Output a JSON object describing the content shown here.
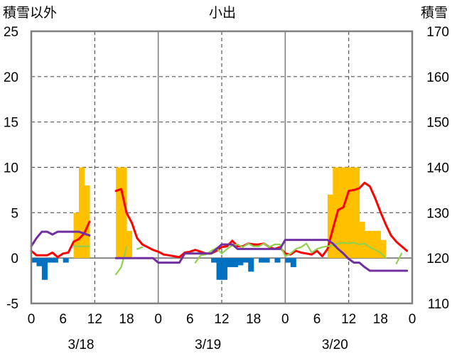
{
  "chart_data": {
    "type": "bar+line",
    "title": "小出",
    "y_left_label": "積雪以外",
    "y_right_label": "積雪",
    "y_left": {
      "min": -5,
      "max": 25,
      "step": 5,
      "ticks": [
        "-5",
        "0",
        "5",
        "10",
        "15",
        "20",
        "25"
      ]
    },
    "y_right": {
      "min": 110,
      "max": 170,
      "ticks": [
        "110",
        "120",
        "130",
        "140",
        "150",
        "160",
        "170"
      ]
    },
    "x": {
      "min": 0,
      "max": 72,
      "tick_hours": [
        0,
        6,
        12,
        18,
        24,
        30,
        36,
        42,
        48,
        54,
        60,
        66,
        72
      ],
      "tick_labels": [
        "0",
        "6",
        "12",
        "18",
        "0",
        "6",
        "12",
        "18",
        "0",
        "6",
        "12",
        "18",
        "0"
      ]
    },
    "dates": [
      {
        "label": "3/18",
        "center_hour": 9
      },
      {
        "label": "3/19",
        "center_hour": 33
      },
      {
        "label": "3/20",
        "center_hour": 57
      }
    ],
    "grid": {
      "horizontal": "dashed",
      "vertical_major_hours": [
        24,
        48
      ],
      "vertical_dashed_hours": [
        12,
        36,
        60
      ]
    },
    "colors": {
      "precip": "#FFC000",
      "temp_neg": "#0070C0",
      "red": "#FF0000",
      "green": "#92D050",
      "purple": "#7030A0",
      "frame": "#808080"
    },
    "precip_bars": [
      {
        "hour": 8,
        "value": 5
      },
      {
        "hour": 9,
        "value": 10
      },
      {
        "hour": 10,
        "value": 8
      },
      {
        "hour": 16,
        "value": 10
      },
      {
        "hour": 17,
        "value": 10
      },
      {
        "hour": 18,
        "value": 3
      },
      {
        "hour": 56,
        "value": 7
      },
      {
        "hour": 57,
        "value": 10
      },
      {
        "hour": 58,
        "value": 10
      },
      {
        "hour": 59,
        "value": 10
      },
      {
        "hour": 60,
        "value": 10
      },
      {
        "hour": 61,
        "value": 10
      },
      {
        "hour": 62,
        "value": 4
      },
      {
        "hour": 63,
        "value": 3
      },
      {
        "hour": 64,
        "value": 3
      },
      {
        "hour": 65,
        "value": 3
      },
      {
        "hour": 66,
        "value": 2
      }
    ],
    "negative_bars": [
      {
        "hour": 0,
        "value": -0.5
      },
      {
        "hour": 1,
        "value": -0.9
      },
      {
        "hour": 2,
        "value": -2.4
      },
      {
        "hour": 3,
        "value": -0.5
      },
      {
        "hour": 4,
        "value": -0.5
      },
      {
        "hour": 6,
        "value": -0.5
      },
      {
        "hour": 34,
        "value": -0.5
      },
      {
        "hour": 35,
        "value": -2.4
      },
      {
        "hour": 36,
        "value": -2.4
      },
      {
        "hour": 37,
        "value": -1
      },
      {
        "hour": 38,
        "value": -1
      },
      {
        "hour": 39,
        "value": -0.8
      },
      {
        "hour": 40,
        "value": -0.5
      },
      {
        "hour": 41,
        "value": -1.5
      },
      {
        "hour": 43,
        "value": -0.5
      },
      {
        "hour": 44,
        "value": -0.5
      },
      {
        "hour": 46,
        "value": -0.5
      },
      {
        "hour": 48,
        "value": -0.5
      },
      {
        "hour": 49,
        "value": -1
      }
    ],
    "series": [
      {
        "color": "#FF0000",
        "axis": "left",
        "segments": [
          [
            [
              0,
              0.8
            ],
            [
              1,
              0.3
            ],
            [
              2,
              0.3
            ],
            [
              3,
              0.3
            ],
            [
              4,
              0.6
            ],
            [
              5,
              0.1
            ],
            [
              6,
              0.5
            ],
            [
              7,
              0.6
            ],
            [
              8,
              1.8
            ],
            [
              9,
              2.1
            ],
            [
              10,
              2.7
            ],
            [
              11,
              4.0
            ]
          ],
          [
            [
              16,
              7.4
            ],
            [
              17,
              7.6
            ],
            [
              18,
              5.0
            ],
            [
              19,
              3.9
            ],
            [
              20,
              2.2
            ],
            [
              21,
              1.5
            ],
            [
              22,
              1.2
            ],
            [
              23,
              0.9
            ],
            [
              24,
              0.7
            ],
            [
              25,
              0.4
            ],
            [
              26,
              0.3
            ],
            [
              27,
              0.2
            ],
            [
              28,
              0.1
            ],
            [
              29,
              0.6
            ],
            [
              30,
              0.7
            ],
            [
              31,
              0.9
            ],
            [
              32,
              0.7
            ],
            [
              33,
              0.5
            ],
            [
              34,
              0.5
            ],
            [
              35,
              0.8
            ],
            [
              36,
              1.2
            ],
            [
              37,
              1.3
            ],
            [
              38,
              1.9
            ],
            [
              39,
              1.3
            ],
            [
              40,
              1.3
            ],
            [
              41,
              1.6
            ],
            [
              42,
              1.5
            ],
            [
              43,
              1.5
            ],
            [
              44,
              1.6
            ],
            [
              45,
              1.2
            ],
            [
              46,
              1.0
            ],
            [
              47,
              1.2
            ],
            [
              48,
              0.5
            ],
            [
              49,
              0.4
            ],
            [
              50,
              0.8
            ],
            [
              51,
              0.6
            ],
            [
              52,
              0.5
            ],
            [
              53,
              0.4
            ],
            [
              54,
              0.8
            ],
            [
              55,
              0.2
            ],
            [
              56,
              1.0
            ],
            [
              57,
              3.2
            ],
            [
              58,
              5.3
            ],
            [
              59,
              5.6
            ],
            [
              60,
              7.4
            ],
            [
              61,
              7.5
            ],
            [
              62,
              7.7
            ],
            [
              63,
              8.3
            ],
            [
              64,
              7.9
            ],
            [
              65,
              6.6
            ],
            [
              66,
              5.1
            ],
            [
              67,
              3.7
            ],
            [
              68,
              2.5
            ],
            [
              69,
              1.8
            ],
            [
              70,
              1.3
            ],
            [
              71,
              0.8
            ]
          ]
        ]
      },
      {
        "color": "#92D050",
        "axis": "left",
        "segments": [
          [
            [
              8,
              1.3
            ],
            [
              9,
              1.3
            ],
            [
              10,
              1.3
            ],
            [
              11,
              1.3
            ]
          ],
          [
            [
              16,
              -1.8
            ],
            [
              17,
              -1.0
            ],
            [
              18,
              1.2
            ]
          ],
          [
            [
              20,
              1.0
            ],
            [
              21,
              1.2
            ]
          ],
          [
            [
              31,
              -0.5
            ],
            [
              32,
              0.3
            ],
            [
              33,
              0.4
            ],
            [
              34,
              0.8
            ],
            [
              35,
              1.1
            ],
            [
              36,
              0.5
            ],
            [
              37,
              1.0
            ],
            [
              38,
              1.4
            ],
            [
              39,
              1.5
            ],
            [
              40,
              1.2
            ],
            [
              41,
              1.6
            ],
            [
              42,
              1.3
            ],
            [
              43,
              1.3
            ],
            [
              44,
              1.6
            ],
            [
              45,
              1.2
            ],
            [
              46,
              1.5
            ],
            [
              47,
              1.5
            ],
            [
              48,
              0.2
            ],
            [
              49,
              0.5
            ],
            [
              50,
              1.0
            ],
            [
              51,
              1.2
            ],
            [
              52,
              1.6
            ],
            [
              53,
              0.6
            ],
            [
              54,
              1.0
            ],
            [
              55,
              1.2
            ],
            [
              56,
              1.3
            ],
            [
              57,
              1.4
            ],
            [
              58,
              1.6
            ],
            [
              59,
              1.7
            ],
            [
              60,
              1.6
            ],
            [
              61,
              1.7
            ],
            [
              62,
              1.5
            ],
            [
              63,
              1.6
            ],
            [
              64,
              1.2
            ],
            [
              65,
              0.9
            ],
            [
              66,
              0.6
            ],
            [
              67,
              0.0
            ]
          ],
          [
            [
              69,
              -0.6
            ],
            [
              70,
              0.5
            ]
          ]
        ]
      },
      {
        "color": "#7030A0",
        "axis": "left",
        "segments": [
          [
            [
              0,
              1.3
            ],
            [
              1,
              2.2
            ],
            [
              2,
              2.9
            ],
            [
              3,
              2.9
            ],
            [
              4,
              2.6
            ],
            [
              5,
              2.9
            ],
            [
              6,
              2.9
            ],
            [
              7,
              2.9
            ],
            [
              8,
              2.9
            ],
            [
              9,
              2.9
            ],
            [
              10,
              2.7
            ],
            [
              11,
              2.5
            ]
          ],
          [
            [
              16,
              0
            ],
            [
              17,
              0
            ],
            [
              18,
              0
            ],
            [
              19,
              0
            ],
            [
              20,
              0
            ],
            [
              21,
              0
            ],
            [
              22,
              0
            ],
            [
              23,
              0
            ],
            [
              24,
              -0.5
            ],
            [
              25,
              -0.5
            ],
            [
              26,
              -0.5
            ],
            [
              27,
              -0.5
            ],
            [
              28,
              -0.5
            ],
            [
              29,
              0.5
            ],
            [
              30,
              0.5
            ],
            [
              31,
              0.5
            ],
            [
              32,
              0.5
            ],
            [
              33,
              0.5
            ],
            [
              34,
              0.5
            ],
            [
              35,
              1.0
            ],
            [
              36,
              1.5
            ],
            [
              37,
              1.5
            ],
            [
              38,
              1.5
            ],
            [
              39,
              1.0
            ],
            [
              40,
              1.0
            ],
            [
              41,
              1.0
            ],
            [
              42,
              1.0
            ],
            [
              43,
              1.0
            ],
            [
              44,
              1.0
            ],
            [
              45,
              1.0
            ],
            [
              46,
              1.0
            ],
            [
              47,
              1.0
            ],
            [
              48,
              2.0
            ],
            [
              49,
              2.0
            ],
            [
              50,
              2.0
            ],
            [
              51,
              2.0
            ],
            [
              52,
              2.0
            ],
            [
              53,
              2.0
            ],
            [
              54,
              2.0
            ],
            [
              55,
              2.0
            ],
            [
              56,
              2.0
            ],
            [
              57,
              1.6
            ],
            [
              58,
              1.0
            ],
            [
              59,
              0.5
            ],
            [
              60,
              -0.1
            ],
            [
              61,
              -0.5
            ],
            [
              62,
              -0.5
            ],
            [
              63,
              -1.0
            ],
            [
              64,
              -1.4
            ],
            [
              65,
              -1.4
            ],
            [
              66,
              -1.4
            ],
            [
              67,
              -1.4
            ],
            [
              68,
              -1.4
            ],
            [
              69,
              -1.4
            ],
            [
              70,
              -1.4
            ],
            [
              71,
              -1.4
            ]
          ]
        ]
      }
    ]
  }
}
